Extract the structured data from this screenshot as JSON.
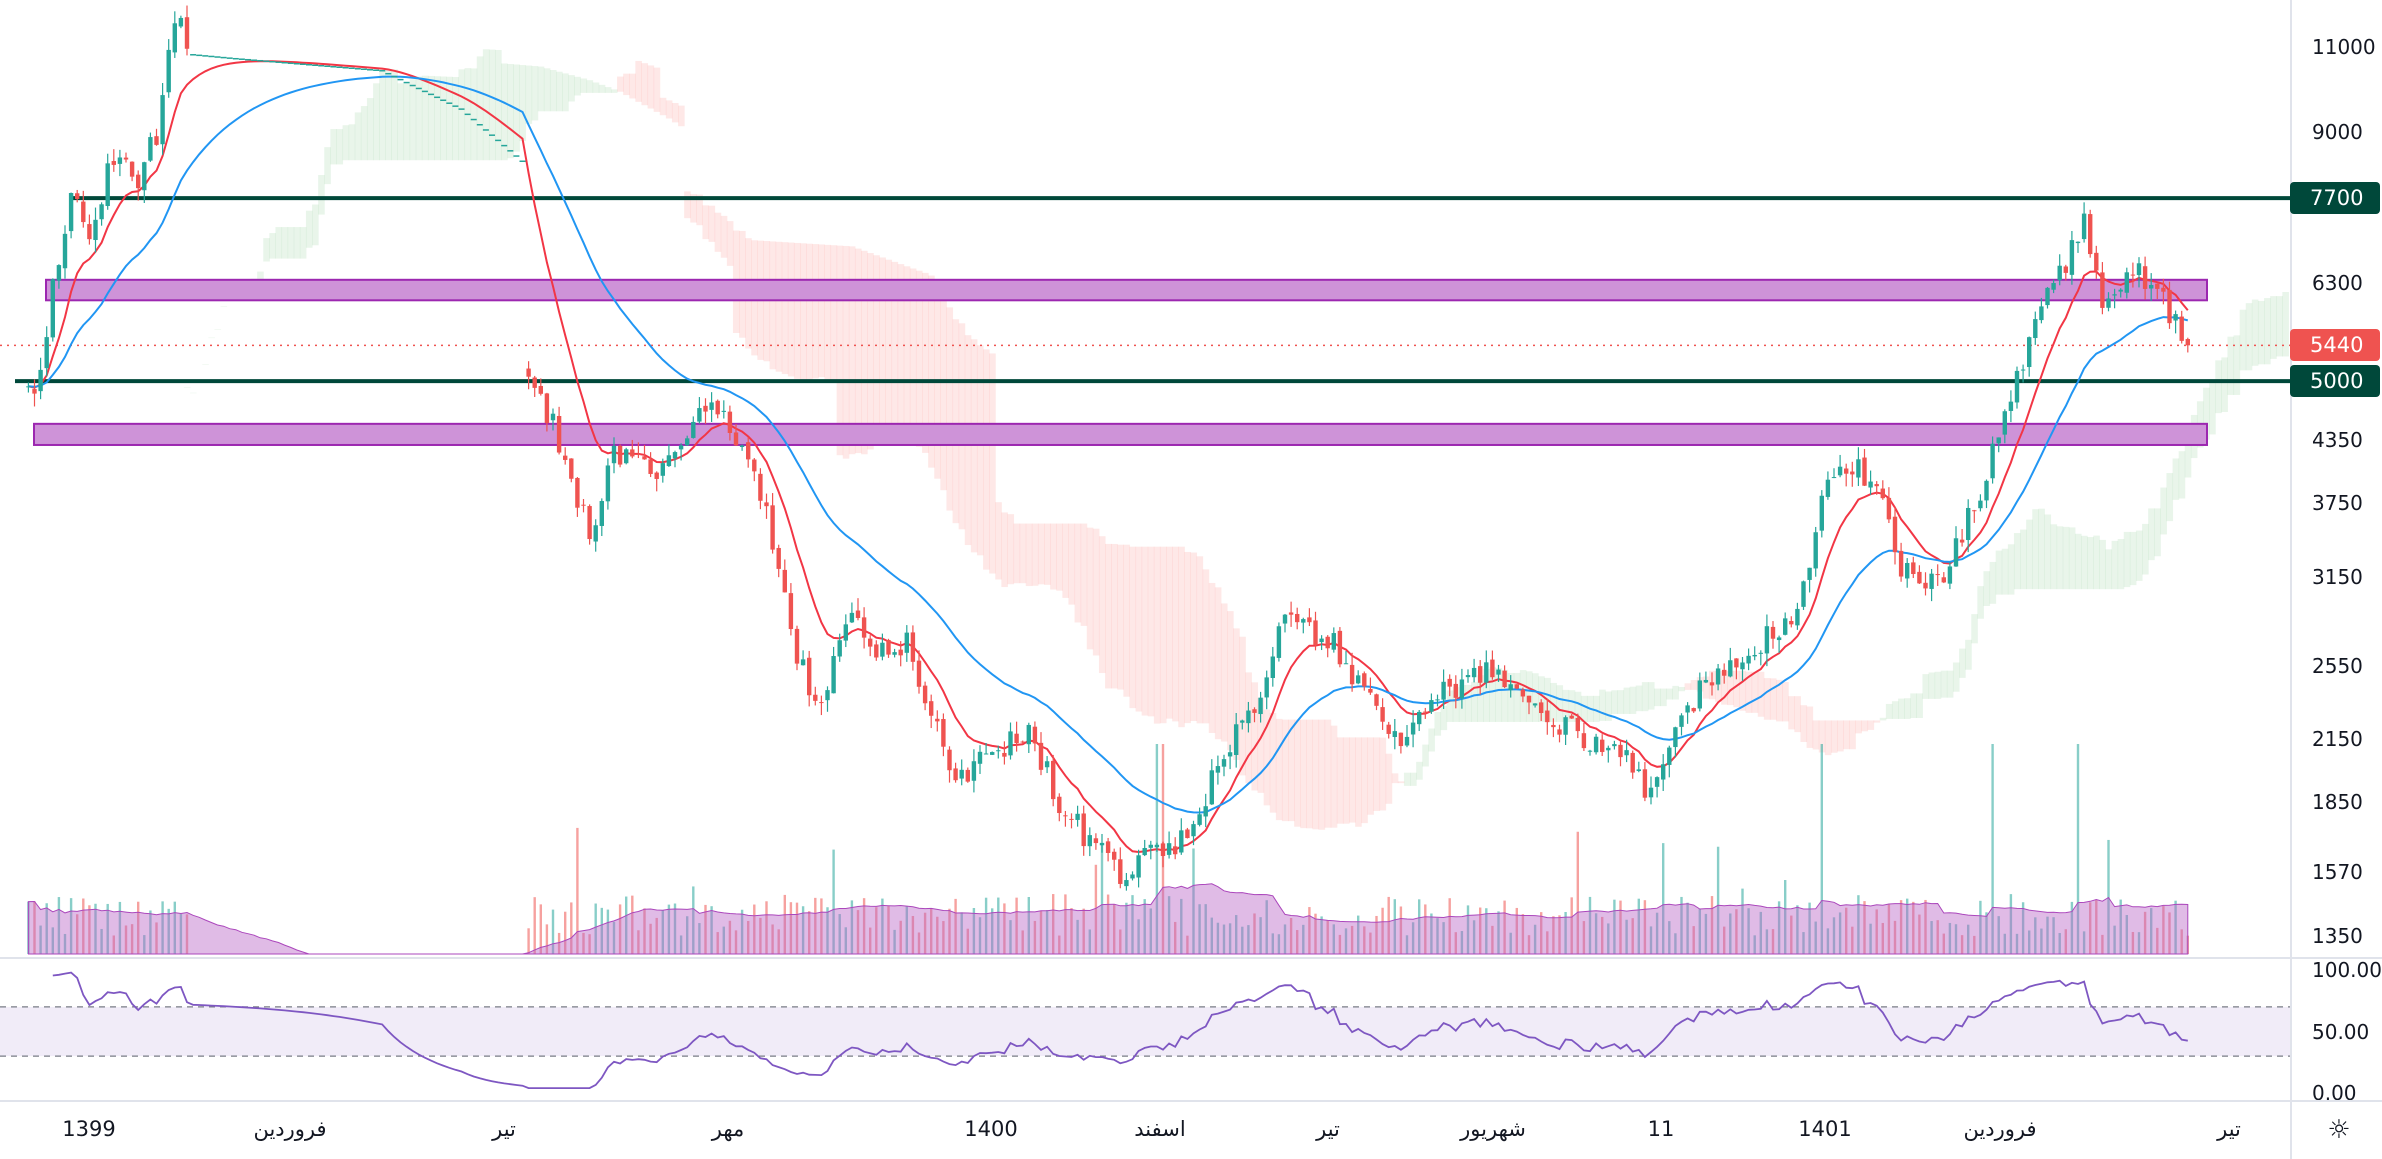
{
  "chart_data": {
    "type": "candlestick",
    "y_scale": "log",
    "colors": {
      "up": "#26a69a",
      "down": "#ef5350",
      "ma_fast": "#f23645",
      "ma_slow": "#2196f3",
      "level_line": "#00483a",
      "zone": "#ce93d8",
      "zone_border": "#9c27b0",
      "rsi": "#7e57c2",
      "rsi_band": "#ede7f6",
      "cloud_up": "#4caf50",
      "cloud_down": "#f44336",
      "volume_ma": "#ba68c8"
    },
    "yticks": [
      11000,
      9000,
      6300,
      4350,
      3750,
      3150,
      2550,
      2150,
      1850,
      1570,
      1350
    ],
    "price_levels": [
      {
        "label": "7700",
        "value": 7700,
        "color": "#00483a"
      },
      {
        "label": "5000",
        "value": 5000,
        "color": "#00483a"
      }
    ],
    "last_price": {
      "label": "5440",
      "value": 5440,
      "color": "#ef5350"
    },
    "zones": [
      {
        "from": 6050,
        "to": 6350
      },
      {
        "from": 4300,
        "to": 4520
      }
    ],
    "xticks": [
      "1399",
      "فروردین",
      "تیر",
      "مهر",
      "1400",
      "اسفند",
      "تیر",
      "شهریور",
      "11",
      "1401",
      "فروردین",
      "تیر"
    ],
    "rsi": {
      "ticks": [
        "100.00",
        "50.00",
        "0.00"
      ],
      "band": [
        30,
        70
      ]
    },
    "price_path": [
      [
        4,
        4800
      ],
      [
        6,
        5000
      ],
      [
        8,
        6300
      ],
      [
        11,
        7700
      ],
      [
        14,
        7200
      ],
      [
        18,
        8500
      ],
      [
        22,
        8000
      ],
      [
        25,
        9000
      ],
      [
        27,
        11000
      ],
      [
        29,
        11800
      ],
      [
        31,
        10800
      ],
      [
        38,
        10700
      ],
      [
        62,
        10400
      ],
      [
        75,
        9500
      ],
      [
        85,
        8400
      ],
      [
        86,
        5000
      ],
      [
        90,
        4500
      ],
      [
        96,
        3500
      ],
      [
        100,
        4200
      ],
      [
        108,
        4000
      ],
      [
        116,
        4800
      ],
      [
        120,
        4400
      ],
      [
        125,
        3700
      ],
      [
        130,
        2600
      ],
      [
        134,
        2300
      ],
      [
        138,
        2900
      ],
      [
        143,
        2600
      ],
      [
        148,
        2700
      ],
      [
        153,
        2200
      ],
      [
        156,
        1950
      ],
      [
        163,
        2100
      ],
      [
        168,
        2200
      ],
      [
        173,
        1850
      ],
      [
        176,
        1750
      ],
      [
        183,
        1550
      ],
      [
        188,
        1650
      ],
      [
        194,
        1700
      ],
      [
        200,
        2100
      ],
      [
        205,
        2300
      ],
      [
        210,
        2900
      ],
      [
        214,
        2750
      ],
      [
        218,
        2700
      ],
      [
        220,
        2500
      ],
      [
        225,
        2350
      ],
      [
        229,
        2100
      ],
      [
        234,
        2350
      ],
      [
        243,
        2550
      ],
      [
        248,
        2400
      ],
      [
        253,
        2250
      ],
      [
        260,
        2150
      ],
      [
        265,
        2100
      ],
      [
        269,
        1900
      ],
      [
        273,
        2150
      ],
      [
        278,
        2400
      ],
      [
        285,
        2600
      ],
      [
        293,
        2850
      ],
      [
        296,
        3300
      ],
      [
        299,
        4000
      ],
      [
        304,
        4100
      ],
      [
        308,
        3700
      ],
      [
        311,
        3200
      ],
      [
        318,
        3100
      ],
      [
        321,
        3500
      ],
      [
        325,
        4000
      ],
      [
        328,
        4600
      ],
      [
        333,
        5800
      ],
      [
        336,
        6200
      ],
      [
        341,
        7300
      ],
      [
        344,
        6000
      ],
      [
        349,
        6500
      ],
      [
        353,
        6300
      ],
      [
        356,
        5700
      ],
      [
        358,
        5440
      ]
    ]
  },
  "settings_icon": "sun-gear-icon"
}
